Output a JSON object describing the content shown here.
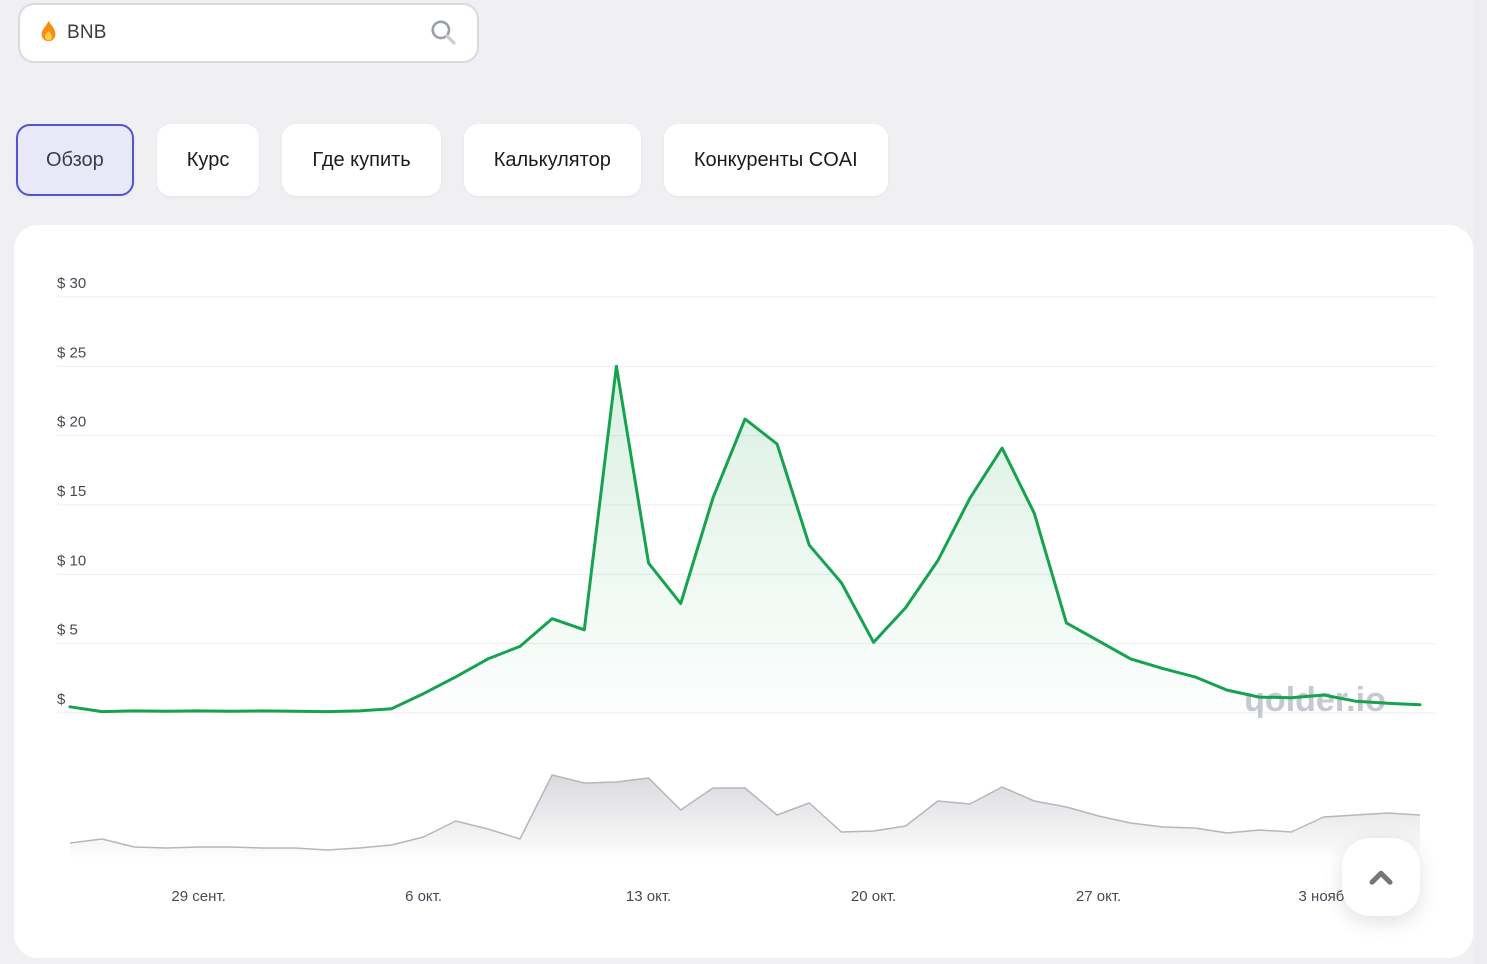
{
  "search": {
    "value": "BNB",
    "flame_icon": "flame-icon",
    "search_icon": "search-icon"
  },
  "tabs": [
    {
      "name": "overview",
      "label": "Обзор",
      "active": true
    },
    {
      "name": "price",
      "label": "Курс",
      "active": false
    },
    {
      "name": "where-to-buy",
      "label": "Где купить",
      "active": false
    },
    {
      "name": "calculator",
      "label": "Калькулятор",
      "active": false
    },
    {
      "name": "coai-competitors",
      "label": "Конкуренты COAI",
      "active": false
    }
  ],
  "chart_data": {
    "type": "area",
    "title": "",
    "watermark": "ɥolder.io",
    "grid": true,
    "legend_position": "none",
    "ylim": [
      0,
      30
    ],
    "y_ticks": [
      "$ 30",
      "$ 25",
      "$ 20",
      "$ 15",
      "$ 10",
      "$ 5",
      "$"
    ],
    "y_tick_values": [
      30,
      25,
      20,
      15,
      10,
      5,
      0
    ],
    "x_ticks": [
      {
        "label": "29 сент.",
        "index": 4
      },
      {
        "label": "6 окт.",
        "index": 11
      },
      {
        "label": "13 окт.",
        "index": 18
      },
      {
        "label": "20 окт.",
        "index": 25
      },
      {
        "label": "27 окт.",
        "index": 32
      },
      {
        "label": "3 нояб.",
        "index": 39
      }
    ],
    "series": [
      {
        "name": "price-usd",
        "color": "#17a24f",
        "fill_top": "rgba(23,162,79,0.16)",
        "fill_bottom": "rgba(23,162,79,0.01)",
        "values": [
          0.45,
          0.1,
          0.15,
          0.12,
          0.15,
          0.12,
          0.15,
          0.12,
          0.1,
          0.15,
          0.3,
          1.4,
          2.6,
          3.9,
          4.8,
          6.8,
          6.0,
          25.0,
          10.8,
          7.9,
          15.5,
          21.2,
          19.4,
          12.1,
          9.4,
          5.1,
          7.6,
          11.0,
          15.5,
          19.1,
          14.4,
          6.5,
          5.2,
          3.9,
          3.2,
          2.6,
          1.65,
          1.15,
          1.1,
          1.3,
          0.85,
          0.7,
          0.6
        ]
      },
      {
        "name": "volume-relative",
        "color": "#b6b6bd",
        "fill_top": "rgba(140,140,150,0.32)",
        "fill_bottom": "rgba(140,140,150,0.02)",
        "values": [
          14,
          18,
          10,
          9,
          10,
          10,
          9,
          9,
          7,
          9,
          12,
          20,
          36,
          28,
          18,
          82,
          74,
          75,
          79,
          47,
          69,
          69,
          42,
          54,
          25,
          26,
          31,
          56,
          53,
          70,
          56,
          50,
          41,
          34,
          30,
          29,
          24,
          27,
          25,
          40,
          42,
          44,
          42
        ]
      }
    ]
  },
  "scroll_top_button": {
    "icon": "chevron-up-icon"
  },
  "colors": {
    "page_bg": "#f0f0f2",
    "card_bg": "#ffffff",
    "grid_line": "#ededef",
    "axis_text": "#454b54",
    "accent_tab": "#5553cf",
    "accent_tab_bg": "#e9e8f8",
    "price_line": "#17a24f",
    "volume_line": "#b6b6bd",
    "watermark": "#c9c8d6"
  }
}
